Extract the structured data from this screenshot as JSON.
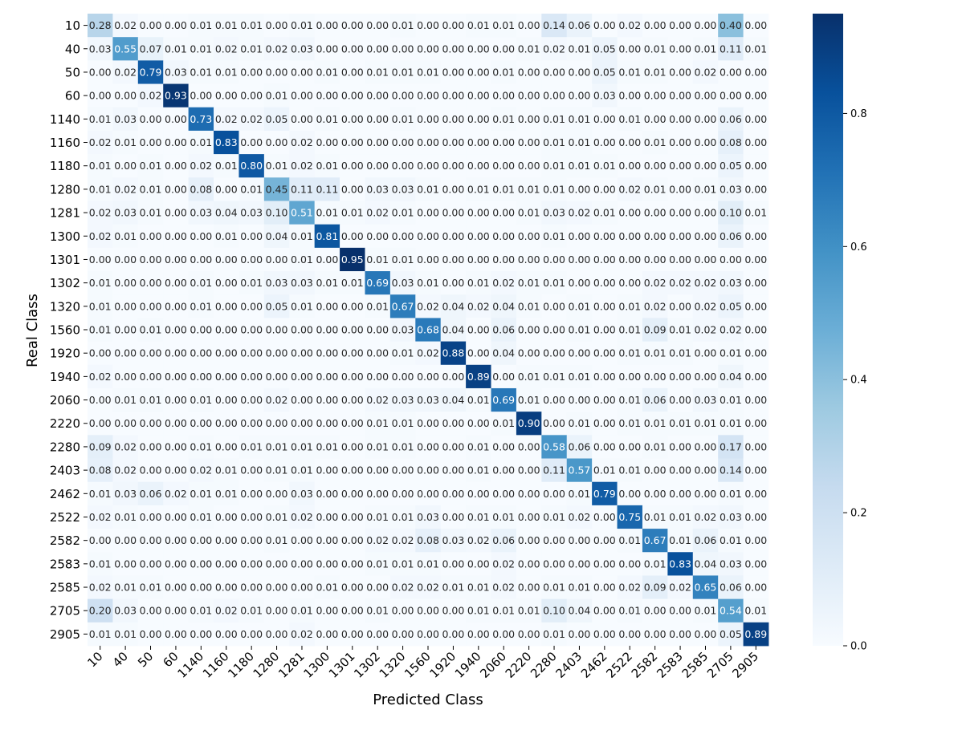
{
  "chart_data": {
    "type": "heatmap",
    "xlabel": "Predicted Class",
    "ylabel": "Real Class",
    "x_categories": [
      "10",
      "40",
      "50",
      "60",
      "1140",
      "1160",
      "1180",
      "1280",
      "1281",
      "1300",
      "1301",
      "1302",
      "1320",
      "1560",
      "1920",
      "1940",
      "2060",
      "2220",
      "2280",
      "2403",
      "2462",
      "2522",
      "2582",
      "2583",
      "2585",
      "2705",
      "2905"
    ],
    "y_categories": [
      "10",
      "40",
      "50",
      "60",
      "1140",
      "1160",
      "1180",
      "1280",
      "1281",
      "1300",
      "1301",
      "1302",
      "1320",
      "1560",
      "1920",
      "1940",
      "2060",
      "2220",
      "2280",
      "2403",
      "2462",
      "2522",
      "2582",
      "2583",
      "2585",
      "2705",
      "2905"
    ],
    "colorbar": {
      "range": [
        0.0,
        0.95
      ],
      "ticks": [
        "0.0",
        "0.2",
        "0.4",
        "0.6",
        "0.8"
      ],
      "tick_values": [
        0.0,
        0.2,
        0.4,
        0.6,
        0.8
      ],
      "colormap": "Blues"
    },
    "value_format": "2 decimals",
    "values": [
      [
        0.28,
        0.02,
        0.0,
        0.0,
        0.01,
        0.01,
        0.01,
        0.0,
        0.01,
        0.0,
        0.0,
        0.0,
        0.01,
        0.0,
        0.0,
        0.01,
        0.01,
        0.0,
        0.14,
        0.06,
        0.0,
        0.02,
        0.0,
        0.0,
        0.0,
        0.4,
        0.0
      ],
      [
        0.03,
        0.55,
        0.07,
        0.01,
        0.01,
        0.02,
        0.01,
        0.02,
        0.03,
        0.0,
        0.0,
        0.0,
        0.0,
        0.0,
        0.0,
        0.0,
        0.0,
        0.01,
        0.02,
        0.01,
        0.05,
        0.0,
        0.01,
        0.0,
        0.01,
        0.11,
        0.01
      ],
      [
        0.0,
        0.02,
        0.79,
        0.03,
        0.01,
        0.01,
        0.0,
        0.0,
        0.0,
        0.01,
        0.0,
        0.01,
        0.01,
        0.01,
        0.0,
        0.0,
        0.01,
        0.0,
        0.0,
        0.0,
        0.05,
        0.01,
        0.01,
        0.0,
        0.02,
        0.0,
        0.0
      ],
      [
        0.0,
        0.0,
        0.02,
        0.93,
        0.0,
        0.0,
        0.0,
        0.01,
        0.0,
        0.0,
        0.0,
        0.0,
        0.0,
        0.0,
        0.0,
        0.0,
        0.0,
        0.0,
        0.0,
        0.0,
        0.03,
        0.0,
        0.0,
        0.0,
        0.0,
        0.0,
        0.0
      ],
      [
        0.01,
        0.03,
        0.0,
        0.0,
        0.73,
        0.02,
        0.02,
        0.05,
        0.0,
        0.01,
        0.0,
        0.0,
        0.01,
        0.0,
        0.0,
        0.0,
        0.01,
        0.0,
        0.01,
        0.01,
        0.0,
        0.01,
        0.0,
        0.0,
        0.0,
        0.06,
        0.0
      ],
      [
        0.02,
        0.01,
        0.0,
        0.0,
        0.01,
        0.83,
        0.0,
        0.0,
        0.02,
        0.0,
        0.0,
        0.0,
        0.0,
        0.0,
        0.0,
        0.0,
        0.0,
        0.0,
        0.01,
        0.01,
        0.0,
        0.0,
        0.01,
        0.0,
        0.0,
        0.08,
        0.0
      ],
      [
        0.01,
        0.0,
        0.01,
        0.0,
        0.02,
        0.01,
        0.8,
        0.01,
        0.02,
        0.01,
        0.0,
        0.0,
        0.0,
        0.0,
        0.0,
        0.0,
        0.0,
        0.0,
        0.01,
        0.01,
        0.01,
        0.0,
        0.0,
        0.0,
        0.0,
        0.05,
        0.0
      ],
      [
        0.01,
        0.02,
        0.01,
        0.0,
        0.08,
        0.0,
        0.01,
        0.45,
        0.11,
        0.11,
        0.0,
        0.03,
        0.03,
        0.01,
        0.0,
        0.01,
        0.01,
        0.01,
        0.01,
        0.0,
        0.0,
        0.02,
        0.01,
        0.0,
        0.01,
        0.03,
        0.0
      ],
      [
        0.02,
        0.03,
        0.01,
        0.0,
        0.03,
        0.04,
        0.03,
        0.1,
        0.51,
        0.01,
        0.01,
        0.02,
        0.01,
        0.0,
        0.0,
        0.0,
        0.0,
        0.01,
        0.03,
        0.02,
        0.01,
        0.0,
        0.0,
        0.0,
        0.0,
        0.1,
        0.01
      ],
      [
        0.02,
        0.01,
        0.0,
        0.0,
        0.0,
        0.01,
        0.0,
        0.04,
        0.01,
        0.81,
        0.0,
        0.0,
        0.0,
        0.0,
        0.0,
        0.0,
        0.0,
        0.0,
        0.01,
        0.0,
        0.0,
        0.0,
        0.0,
        0.0,
        0.0,
        0.06,
        0.0
      ],
      [
        0.0,
        0.0,
        0.0,
        0.0,
        0.0,
        0.0,
        0.0,
        0.0,
        0.01,
        0.0,
        0.95,
        0.01,
        0.01,
        0.0,
        0.0,
        0.0,
        0.0,
        0.0,
        0.0,
        0.0,
        0.0,
        0.0,
        0.0,
        0.0,
        0.0,
        0.0,
        0.0
      ],
      [
        0.01,
        0.0,
        0.0,
        0.0,
        0.01,
        0.0,
        0.01,
        0.03,
        0.03,
        0.01,
        0.01,
        0.69,
        0.03,
        0.01,
        0.0,
        0.01,
        0.02,
        0.01,
        0.01,
        0.0,
        0.0,
        0.0,
        0.02,
        0.02,
        0.02,
        0.03,
        0.0
      ],
      [
        0.01,
        0.0,
        0.0,
        0.0,
        0.01,
        0.0,
        0.0,
        0.05,
        0.01,
        0.0,
        0.0,
        0.01,
        0.67,
        0.02,
        0.04,
        0.02,
        0.04,
        0.01,
        0.0,
        0.01,
        0.0,
        0.01,
        0.02,
        0.0,
        0.02,
        0.05,
        0.0
      ],
      [
        0.01,
        0.0,
        0.01,
        0.0,
        0.0,
        0.0,
        0.0,
        0.0,
        0.0,
        0.0,
        0.0,
        0.0,
        0.03,
        0.68,
        0.04,
        0.0,
        0.06,
        0.0,
        0.0,
        0.01,
        0.0,
        0.01,
        0.09,
        0.01,
        0.02,
        0.02,
        0.0
      ],
      [
        0.0,
        0.0,
        0.0,
        0.0,
        0.0,
        0.0,
        0.0,
        0.0,
        0.0,
        0.0,
        0.0,
        0.0,
        0.01,
        0.02,
        0.88,
        0.0,
        0.04,
        0.0,
        0.0,
        0.0,
        0.0,
        0.01,
        0.01,
        0.01,
        0.0,
        0.01,
        0.0
      ],
      [
        0.02,
        0.0,
        0.0,
        0.0,
        0.0,
        0.0,
        0.0,
        0.0,
        0.0,
        0.0,
        0.0,
        0.0,
        0.0,
        0.0,
        0.0,
        0.89,
        0.0,
        0.01,
        0.01,
        0.01,
        0.0,
        0.0,
        0.0,
        0.0,
        0.0,
        0.04,
        0.0
      ],
      [
        0.0,
        0.01,
        0.01,
        0.0,
        0.01,
        0.0,
        0.0,
        0.02,
        0.0,
        0.0,
        0.0,
        0.02,
        0.03,
        0.03,
        0.04,
        0.01,
        0.69,
        0.01,
        0.0,
        0.0,
        0.0,
        0.01,
        0.06,
        0.0,
        0.03,
        0.01,
        0.0
      ],
      [
        0.0,
        0.0,
        0.0,
        0.0,
        0.0,
        0.0,
        0.0,
        0.0,
        0.0,
        0.0,
        0.0,
        0.01,
        0.01,
        0.0,
        0.0,
        0.0,
        0.01,
        0.9,
        0.0,
        0.01,
        0.0,
        0.01,
        0.01,
        0.01,
        0.01,
        0.01,
        0.0
      ],
      [
        0.09,
        0.02,
        0.0,
        0.0,
        0.01,
        0.0,
        0.01,
        0.01,
        0.01,
        0.01,
        0.0,
        0.01,
        0.01,
        0.0,
        0.0,
        0.01,
        0.0,
        0.0,
        0.58,
        0.06,
        0.0,
        0.0,
        0.01,
        0.0,
        0.0,
        0.17,
        0.0
      ],
      [
        0.08,
        0.02,
        0.0,
        0.0,
        0.02,
        0.01,
        0.0,
        0.01,
        0.01,
        0.0,
        0.0,
        0.0,
        0.0,
        0.0,
        0.0,
        0.01,
        0.0,
        0.0,
        0.11,
        0.57,
        0.01,
        0.01,
        0.0,
        0.0,
        0.0,
        0.14,
        0.0
      ],
      [
        0.01,
        0.03,
        0.06,
        0.02,
        0.01,
        0.01,
        0.0,
        0.0,
        0.03,
        0.0,
        0.0,
        0.0,
        0.0,
        0.0,
        0.0,
        0.0,
        0.0,
        0.0,
        0.0,
        0.01,
        0.79,
        0.0,
        0.0,
        0.0,
        0.0,
        0.01,
        0.0
      ],
      [
        0.02,
        0.01,
        0.0,
        0.0,
        0.01,
        0.0,
        0.0,
        0.01,
        0.02,
        0.0,
        0.0,
        0.01,
        0.01,
        0.03,
        0.0,
        0.01,
        0.01,
        0.0,
        0.01,
        0.02,
        0.0,
        0.75,
        0.01,
        0.01,
        0.02,
        0.03,
        0.0
      ],
      [
        0.0,
        0.0,
        0.0,
        0.0,
        0.0,
        0.0,
        0.0,
        0.01,
        0.0,
        0.0,
        0.0,
        0.02,
        0.02,
        0.08,
        0.03,
        0.02,
        0.06,
        0.0,
        0.0,
        0.0,
        0.0,
        0.01,
        0.67,
        0.01,
        0.06,
        0.01,
        0.0
      ],
      [
        0.01,
        0.0,
        0.0,
        0.0,
        0.0,
        0.0,
        0.0,
        0.0,
        0.0,
        0.0,
        0.0,
        0.01,
        0.01,
        0.01,
        0.0,
        0.0,
        0.02,
        0.0,
        0.0,
        0.0,
        0.0,
        0.0,
        0.01,
        0.83,
        0.04,
        0.03,
        0.0
      ],
      [
        0.02,
        0.01,
        0.01,
        0.0,
        0.0,
        0.0,
        0.0,
        0.0,
        0.0,
        0.01,
        0.0,
        0.0,
        0.02,
        0.02,
        0.01,
        0.01,
        0.02,
        0.0,
        0.01,
        0.01,
        0.0,
        0.02,
        0.09,
        0.02,
        0.65,
        0.06,
        0.0
      ],
      [
        0.2,
        0.03,
        0.0,
        0.0,
        0.01,
        0.02,
        0.01,
        0.0,
        0.01,
        0.0,
        0.0,
        0.01,
        0.0,
        0.0,
        0.0,
        0.01,
        0.01,
        0.01,
        0.1,
        0.04,
        0.0,
        0.01,
        0.0,
        0.0,
        0.01,
        0.54,
        0.01
      ],
      [
        0.01,
        0.01,
        0.0,
        0.0,
        0.0,
        0.0,
        0.0,
        0.0,
        0.02,
        0.0,
        0.0,
        0.0,
        0.0,
        0.0,
        0.0,
        0.0,
        0.0,
        0.0,
        0.01,
        0.0,
        0.0,
        0.0,
        0.0,
        0.0,
        0.0,
        0.05,
        0.89
      ]
    ]
  }
}
